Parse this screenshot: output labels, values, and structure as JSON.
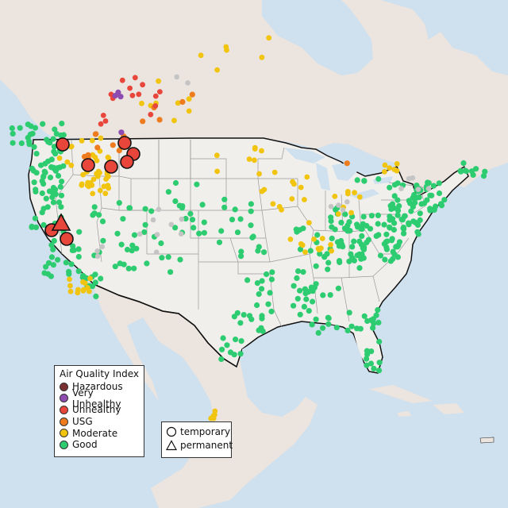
{
  "map": {
    "colors": {
      "ocean": "#cfe0ee",
      "us_land": "#f1efec",
      "other_land": "#ebe4df",
      "state_border": "#9a9a9a",
      "national_border": "#111111",
      "nodata_site": "#c4c4c4"
    },
    "aqi_legend": {
      "title": "Air Quality Index",
      "items": [
        {
          "label": "Hazardous",
          "color": "#7a3030"
        },
        {
          "label": "Very Unhealthy",
          "color": "#8f4cb0"
        },
        {
          "label": "Unhealthy",
          "color": "#e8463b"
        },
        {
          "label": "USG",
          "color": "#ee7c1e"
        },
        {
          "label": "Moderate",
          "color": "#f1c40f"
        },
        {
          "label": "Good",
          "color": "#2ecc71"
        }
      ]
    },
    "type_legend": {
      "items": [
        {
          "label": "temporary",
          "shape": "circle-icon"
        },
        {
          "label": "permanent",
          "shape": "triangle-icon"
        }
      ]
    }
  }
}
